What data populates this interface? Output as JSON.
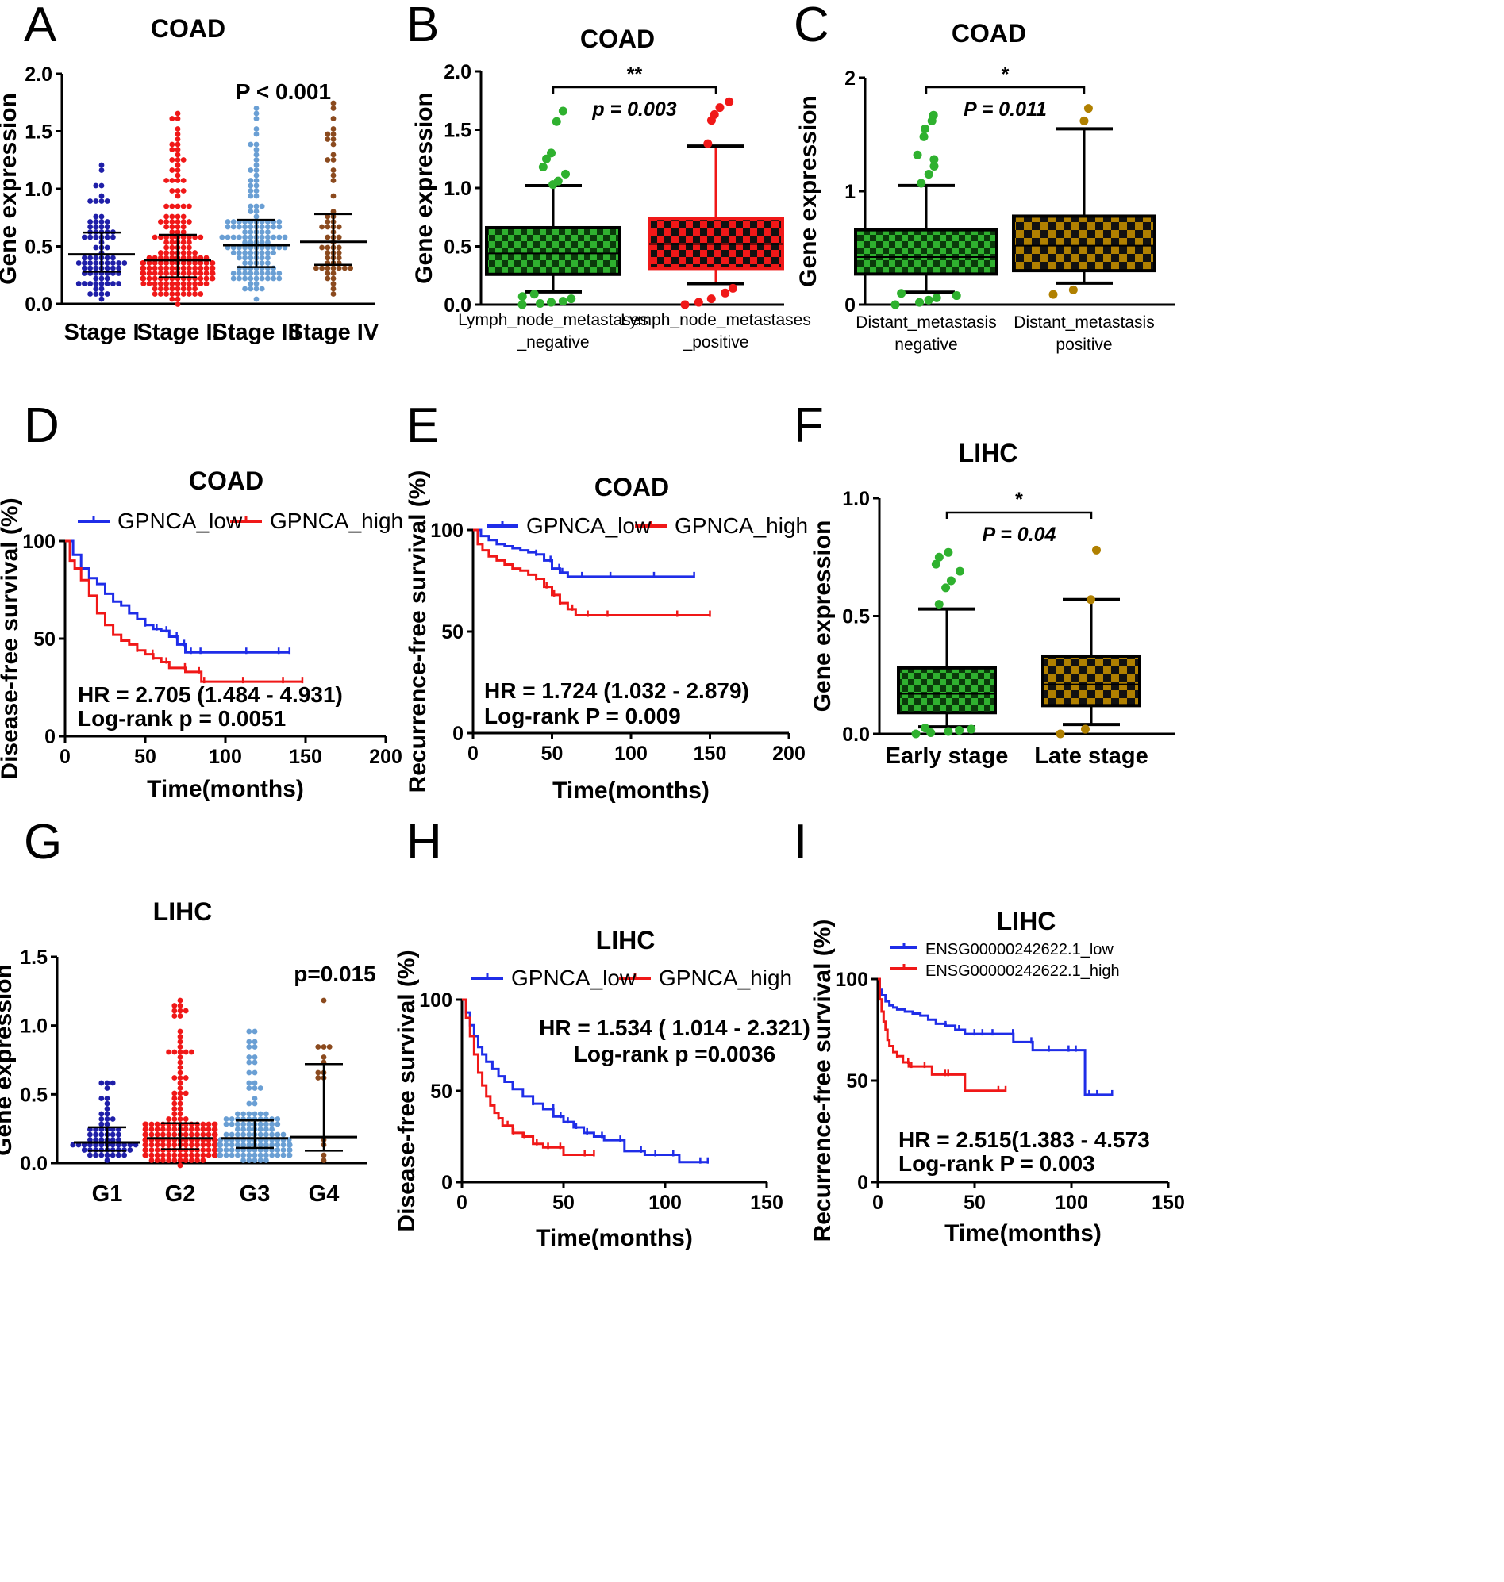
{
  "colors": {
    "navy": "#1f1fa8",
    "red": "#f01818",
    "lightblue": "#6a9fd4",
    "brown": "#8b4a1e",
    "green": "#2fb12f",
    "gold": "#b08000",
    "black": "#000000",
    "blue": "#1f2de8"
  },
  "chart_data": [
    {
      "id": "A",
      "type": "scatter",
      "letter": "A",
      "title": "COAD",
      "ylabel": "Gene expression",
      "ylim": [
        0,
        2.0
      ],
      "yticks": [
        "0.0",
        "0.5",
        "1.0",
        "1.5",
        "2.0"
      ],
      "categories": [
        "Stage I",
        "Stage II",
        "Stage III",
        "Stage IV"
      ],
      "annotation": "P < 0.001",
      "groups": [
        {
          "name": "Stage I",
          "color": "navy",
          "n": 80,
          "min": 0.03,
          "q1": 0.28,
          "median": 0.43,
          "q3": 0.62,
          "max": 1.22
        },
        {
          "name": "Stage II",
          "color": "red",
          "n": 180,
          "min": 0.0,
          "q1": 0.23,
          "median": 0.38,
          "q3": 0.6,
          "max": 1.65
        },
        {
          "name": "Stage III",
          "color": "lightblue",
          "n": 130,
          "min": 0.02,
          "q1": 0.32,
          "median": 0.51,
          "q3": 0.73,
          "max": 1.68
        },
        {
          "name": "Stage IV",
          "color": "brown",
          "n": 55,
          "min": 0.1,
          "q1": 0.34,
          "median": 0.54,
          "q3": 0.78,
          "max": 1.74
        }
      ]
    },
    {
      "id": "B",
      "type": "box",
      "letter": "B",
      "title": "COAD",
      "ylabel": "Gene expression",
      "ylim": [
        0,
        2.0
      ],
      "yticks": [
        "0.0",
        "0.5",
        "1.0",
        "1.5",
        "2.0"
      ],
      "categories": [
        "Lymph_node_metastases\n_negative",
        "Lymph_node_metastases\n_positive"
      ],
      "significance": "**",
      "pvalue": "p = 0.003",
      "boxes": [
        {
          "color": "green",
          "whisk_lo": 0.11,
          "q1": 0.26,
          "median": 0.44,
          "q3": 0.66,
          "whisk_hi": 1.02,
          "outliers": [
            0.0,
            0.01,
            0.02,
            0.03,
            0.05,
            0.07,
            0.09,
            1.03,
            1.06,
            1.12,
            1.18,
            1.25,
            1.3,
            1.57,
            1.66
          ]
        },
        {
          "color": "red",
          "whisk_lo": 0.18,
          "q1": 0.31,
          "median": 0.52,
          "q3": 0.74,
          "whisk_hi": 1.36,
          "outliers": [
            0.0,
            0.02,
            0.05,
            0.1,
            0.14,
            1.38,
            1.58,
            1.63,
            1.69,
            1.74
          ]
        }
      ]
    },
    {
      "id": "C",
      "type": "box",
      "letter": "C",
      "title": "COAD",
      "ylabel": "Gene expression",
      "ylim": [
        0,
        2
      ],
      "yticks": [
        "0",
        "1",
        "2"
      ],
      "categories": [
        "Distant_metastasis\nnegative",
        "Distant_metastasis\npositive"
      ],
      "significance": "*",
      "pvalue": "P = 0.011",
      "boxes": [
        {
          "color": "green",
          "whisk_lo": 0.11,
          "q1": 0.27,
          "median": 0.42,
          "q3": 0.66,
          "whisk_hi": 1.05,
          "outliers": [
            0.0,
            0.02,
            0.04,
            0.06,
            0.08,
            0.1,
            1.07,
            1.15,
            1.22,
            1.28,
            1.32,
            1.48,
            1.55,
            1.62,
            1.67
          ]
        },
        {
          "color": "gold",
          "whisk_lo": 0.19,
          "q1": 0.3,
          "median": 0.52,
          "q3": 0.78,
          "whisk_hi": 1.55,
          "outliers": [
            0.09,
            0.13,
            1.62,
            1.73
          ]
        }
      ]
    },
    {
      "id": "D",
      "type": "line",
      "letter": "D",
      "title": "COAD",
      "xlabel": "Time(months)",
      "ylabel": "Disease-free survival (%)",
      "xlim": [
        0,
        200
      ],
      "ylim": [
        0,
        100
      ],
      "xticks": [
        "0",
        "50",
        "100",
        "150",
        "200"
      ],
      "yticks": [
        "0",
        "50",
        "100"
      ],
      "series": [
        {
          "name": "GPNCA_low",
          "color": "blue",
          "x": [
            0,
            5,
            10,
            15,
            20,
            25,
            30,
            35,
            40,
            45,
            50,
            55,
            60,
            65,
            70,
            75,
            80,
            100,
            120,
            140
          ],
          "y": [
            100,
            93,
            86,
            81,
            78,
            73,
            69,
            67,
            63,
            60,
            57,
            55,
            54,
            51,
            47,
            43,
            43,
            43,
            43,
            43
          ]
        },
        {
          "name": "GPNCA_high",
          "color": "red",
          "x": [
            0,
            3,
            6,
            10,
            15,
            20,
            25,
            30,
            35,
            40,
            45,
            50,
            55,
            60,
            65,
            75,
            85,
            100,
            120,
            148
          ],
          "y": [
            100,
            90,
            86,
            80,
            72,
            63,
            57,
            52,
            49,
            47,
            44,
            42,
            40,
            38,
            35,
            33,
            28,
            28,
            28,
            28
          ]
        }
      ],
      "annotation": [
        "HR = 2.705 (1.484 - 4.931)",
        "Log-rank p = 0.0051"
      ]
    },
    {
      "id": "E",
      "type": "line",
      "letter": "E",
      "title": "COAD",
      "xlabel": "Time(months)",
      "ylabel": "Recurrence-free survival (%)",
      "xlim": [
        0,
        200
      ],
      "ylim": [
        0,
        100
      ],
      "xticks": [
        "0",
        "50",
        "100",
        "150",
        "200"
      ],
      "yticks": [
        "0",
        "50",
        "100"
      ],
      "series": [
        {
          "name": "GPNCA_low",
          "color": "blue",
          "x": [
            0,
            5,
            10,
            15,
            20,
            25,
            30,
            35,
            40,
            45,
            50,
            55,
            60,
            80,
            100,
            140
          ],
          "y": [
            100,
            97,
            95,
            93,
            92,
            91,
            90,
            89,
            88,
            85,
            81,
            79,
            77,
            77,
            77,
            77
          ]
        },
        {
          "name": "GPNCA_high",
          "color": "red",
          "x": [
            0,
            3,
            6,
            10,
            15,
            20,
            25,
            30,
            35,
            40,
            45,
            50,
            55,
            60,
            65,
            80,
            100,
            150
          ],
          "y": [
            100,
            93,
            90,
            87,
            85,
            83,
            81,
            80,
            78,
            76,
            72,
            68,
            64,
            61,
            58,
            58,
            58,
            58
          ]
        }
      ],
      "annotation": [
        "HR = 1.724 (1.032 - 2.879)",
        "Log-rank P = 0.009"
      ]
    },
    {
      "id": "F",
      "type": "box",
      "letter": "F",
      "title": "LIHC",
      "ylabel": "Gene expression",
      "ylim": [
        0,
        1.0
      ],
      "yticks": [
        "0.0",
        "0.5",
        "1.0"
      ],
      "categories": [
        "Early stage",
        "Late stage"
      ],
      "significance": "*",
      "pvalue": "P = 0.04",
      "boxes": [
        {
          "color": "green",
          "whisk_lo": 0.03,
          "q1": 0.09,
          "median": 0.17,
          "q3": 0.28,
          "whisk_hi": 0.53,
          "outliers": [
            0.0,
            0.005,
            0.01,
            0.015,
            0.02,
            0.025,
            0.55,
            0.62,
            0.65,
            0.69,
            0.72,
            0.75,
            0.77
          ]
        },
        {
          "color": "gold",
          "whisk_lo": 0.04,
          "q1": 0.12,
          "median": 0.21,
          "q3": 0.33,
          "whisk_hi": 0.57,
          "outliers": [
            0.0,
            0.02,
            0.57,
            0.78
          ]
        }
      ]
    },
    {
      "id": "G",
      "type": "scatter",
      "letter": "G",
      "title": "LIHC",
      "ylabel": "Gene expression",
      "ylim": [
        0,
        1.5
      ],
      "yticks": [
        "0.0",
        "0.5",
        "1.0",
        "1.5"
      ],
      "categories": [
        "G1",
        "G2",
        "G3",
        "G4"
      ],
      "annotation": "p=0.015",
      "groups": [
        {
          "name": "G1",
          "color": "navy",
          "n": 60,
          "min": 0.02,
          "q1": 0.09,
          "median": 0.15,
          "q3": 0.26,
          "max": 0.6
        },
        {
          "name": "G2",
          "color": "red",
          "n": 190,
          "min": 0.0,
          "q1": 0.1,
          "median": 0.18,
          "q3": 0.29,
          "max": 1.17
        },
        {
          "name": "G3",
          "color": "lightblue",
          "n": 140,
          "min": 0.01,
          "q1": 0.11,
          "median": 0.18,
          "q3": 0.31,
          "max": 0.97
        },
        {
          "name": "G4",
          "color": "brown",
          "n": 12,
          "min": 0.03,
          "q1": 0.09,
          "median": 0.19,
          "q3": 0.72,
          "max": 1.18
        }
      ]
    },
    {
      "id": "H",
      "type": "line",
      "letter": "H",
      "title": "LIHC",
      "xlabel": "Time(months)",
      "ylabel": "Disease-free survival (%)",
      "xlim": [
        0,
        150
      ],
      "ylim": [
        0,
        100
      ],
      "xticks": [
        "0",
        "50",
        "100",
        "150"
      ],
      "yticks": [
        "0",
        "50",
        "100"
      ],
      "series": [
        {
          "name": "GPNCA_low",
          "color": "blue",
          "x": [
            0,
            2,
            4,
            6,
            8,
            10,
            12,
            15,
            18,
            21,
            25,
            30,
            35,
            40,
            45,
            50,
            55,
            60,
            65,
            70,
            80,
            90,
            100,
            107,
            121
          ],
          "y": [
            100,
            93,
            86,
            80,
            74,
            70,
            66,
            62,
            58,
            55,
            51,
            47,
            43,
            40,
            36,
            33,
            30,
            27,
            25,
            23,
            17,
            15,
            15,
            11,
            11
          ]
        },
        {
          "name": "GPNCA_high",
          "color": "red",
          "x": [
            0,
            2,
            4,
            6,
            8,
            10,
            12,
            14,
            16,
            18,
            20,
            25,
            30,
            35,
            40,
            45,
            50,
            65
          ],
          "y": [
            100,
            90,
            80,
            70,
            60,
            53,
            47,
            42,
            38,
            35,
            31,
            27,
            25,
            21,
            19,
            19,
            15,
            15
          ]
        }
      ],
      "annotation": [
        "HR = 1.534 ( 1.014 - 2.321)",
        "Log-rank p =0.0036"
      ]
    },
    {
      "id": "I",
      "type": "line",
      "letter": "I",
      "title": "LIHC",
      "xlabel": "Time(months)",
      "ylabel": "Recurrence-free survival (%)",
      "xlim": [
        0,
        150
      ],
      "ylim": [
        0,
        100
      ],
      "xticks": [
        "0",
        "50",
        "100",
        "150"
      ],
      "yticks": [
        "0",
        "50",
        "100"
      ],
      "series": [
        {
          "name": "ENSG00000242622.1_low",
          "color": "blue",
          "x": [
            0,
            1,
            2,
            4,
            6,
            8,
            10,
            14,
            18,
            22,
            26,
            30,
            35,
            40,
            45,
            50,
            55,
            60,
            70,
            80,
            90,
            100,
            107,
            110,
            121
          ],
          "y": [
            100,
            95,
            92,
            89,
            87,
            86,
            85,
            84,
            83,
            82,
            80,
            78,
            77,
            75,
            73,
            73,
            73,
            73,
            69,
            65,
            65,
            65,
            43,
            43,
            43
          ]
        },
        {
          "name": "ENSG00000242622.1_high",
          "color": "red",
          "x": [
            0,
            1,
            2,
            3,
            4,
            5,
            6,
            8,
            10,
            13,
            16,
            20,
            28,
            35,
            45,
            66
          ],
          "y": [
            100,
            90,
            84,
            79,
            75,
            70,
            67,
            64,
            62,
            59,
            57,
            57,
            53,
            53,
            45,
            45
          ]
        }
      ],
      "annotation": [
        "HR = 2.515(1.383 - 4.573",
        "Log-rank P = 0.003"
      ]
    }
  ]
}
